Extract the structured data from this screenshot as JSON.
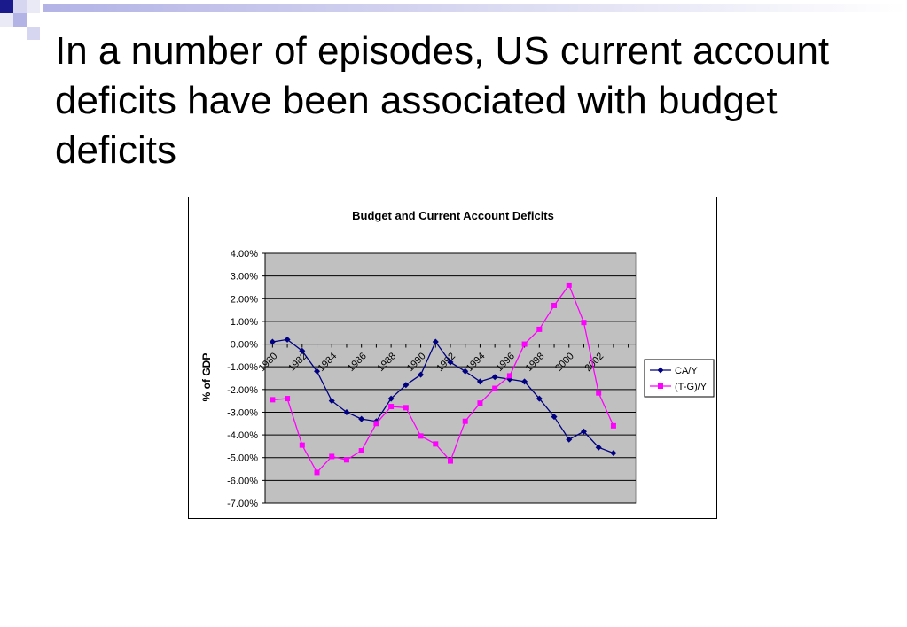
{
  "slide": {
    "title": "In a number of episodes, US current account deficits have been associated with budget deficits"
  },
  "colors": {
    "accent_navy": "#1a1a8c",
    "accent_lavender": "#b3b3e6",
    "plot_background": "#c0c0c0",
    "series_ca": "#000080",
    "series_tg": "#ff00ff"
  },
  "chart_data": {
    "type": "line",
    "title": "Budget and Current Account Deficits",
    "xlabel": "",
    "ylabel": "% of GDP",
    "ylim": [
      -7.0,
      4.0
    ],
    "y_ticks": [
      "4.00%",
      "3.00%",
      "2.00%",
      "1.00%",
      "0.00%",
      "-1.00%",
      "-2.00%",
      "-3.00%",
      "-4.00%",
      "-5.00%",
      "-6.00%",
      "-7.00%"
    ],
    "x_tick_labels": [
      "1980",
      "1982",
      "1984",
      "1986",
      "1988",
      "1990",
      "1992",
      "1994",
      "1996",
      "1998",
      "2000",
      "2002"
    ],
    "x": [
      1980,
      1981,
      1982,
      1983,
      1984,
      1985,
      1986,
      1987,
      1988,
      1989,
      1990,
      1991,
      1992,
      1993,
      1994,
      1995,
      1996,
      1997,
      1998,
      1999,
      2000,
      2001,
      2002,
      2003,
      2004
    ],
    "grid": true,
    "legend_position": "right",
    "series": [
      {
        "name": "CA/Y",
        "marker": "diamond",
        "values": [
          0.1,
          0.2,
          -0.3,
          -1.2,
          -2.5,
          -3.0,
          -3.3,
          -3.4,
          -2.4,
          -1.8,
          -1.35,
          0.1,
          -0.8,
          -1.2,
          -1.65,
          -1.45,
          -1.55,
          -1.65,
          -2.4,
          -3.2,
          -4.2,
          -3.85,
          -4.55,
          -4.8,
          null
        ]
      },
      {
        "name": "(T-G)/Y",
        "marker": "square",
        "values": [
          -2.45,
          -2.4,
          -4.45,
          -5.65,
          -4.95,
          -5.1,
          -4.7,
          -3.5,
          -2.75,
          -2.8,
          -4.05,
          -4.4,
          -5.15,
          -3.4,
          -2.6,
          -1.95,
          -1.4,
          0.0,
          0.65,
          1.7,
          2.6,
          0.95,
          -2.15,
          -3.6,
          null
        ]
      }
    ]
  }
}
